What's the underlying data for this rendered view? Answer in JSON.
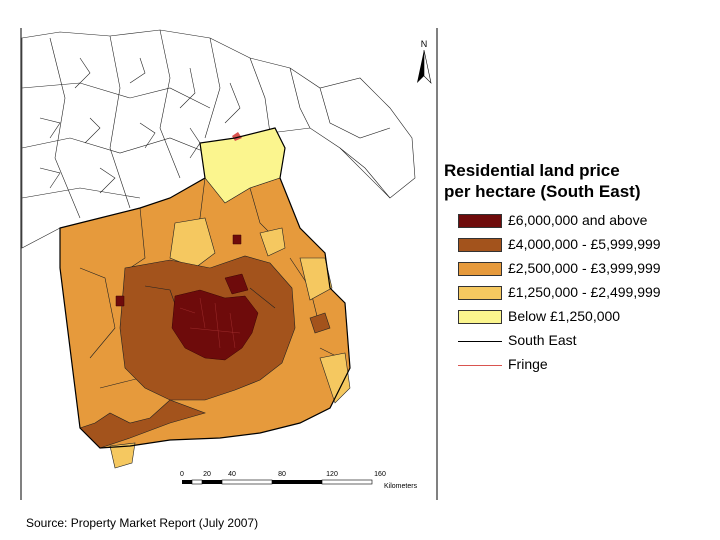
{
  "north_label": "N",
  "legend": {
    "title_line1": "Residential land price",
    "title_line2": "per hectare (South East)",
    "items": [
      {
        "label": "£6,000,000 and above",
        "color": "#6e0b0b",
        "kind": "fill"
      },
      {
        "label": "£4,000,000 - £5,999,999",
        "color": "#a3531c",
        "kind": "fill"
      },
      {
        "label": "£2,500,000 - £3,999,999",
        "color": "#e69a3c",
        "kind": "fill"
      },
      {
        "label": "£1,250,000 - £2,499,999",
        "color": "#f5c860",
        "kind": "fill"
      },
      {
        "label": "Below £1,250,000",
        "color": "#fbf58e",
        "kind": "fill"
      },
      {
        "label": "South East",
        "color": "#000000",
        "kind": "line"
      },
      {
        "label": "Fringe",
        "color": "#d9534f",
        "kind": "line"
      }
    ]
  },
  "scale_bar": {
    "ticks": [
      "0",
      "20",
      "40",
      "80",
      "120",
      "160"
    ],
    "unit": "Kilometers"
  },
  "source": "Source: Property Market Report (July 2007)"
}
